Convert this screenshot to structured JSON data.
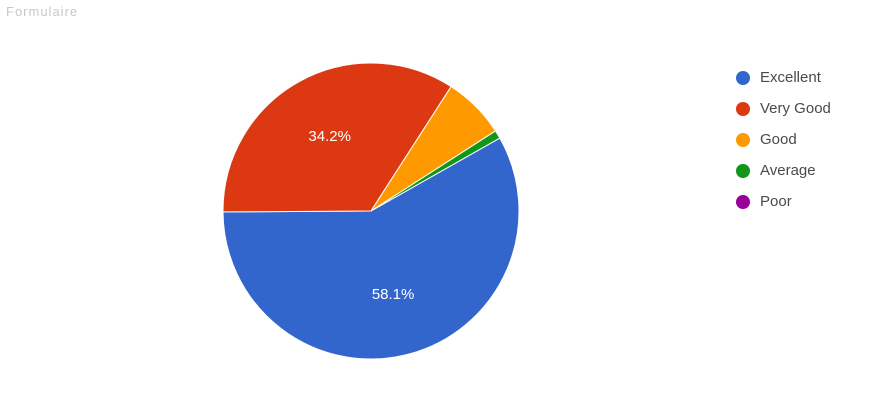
{
  "header": {
    "caption": "Formulaire"
  },
  "chart_data": {
    "type": "pie",
    "title": "",
    "categories": [
      "Excellent",
      "Very Good",
      "Good",
      "Average",
      "Poor"
    ],
    "values": [
      58.1,
      34.2,
      6.8,
      0.9,
      0.0
    ],
    "data_labels": [
      "58.1%",
      "34.2%",
      "",
      "",
      ""
    ],
    "colors": [
      "#3366cc",
      "#dc3912",
      "#ff9900",
      "#109618",
      "#990099"
    ],
    "legend_position": "right"
  }
}
